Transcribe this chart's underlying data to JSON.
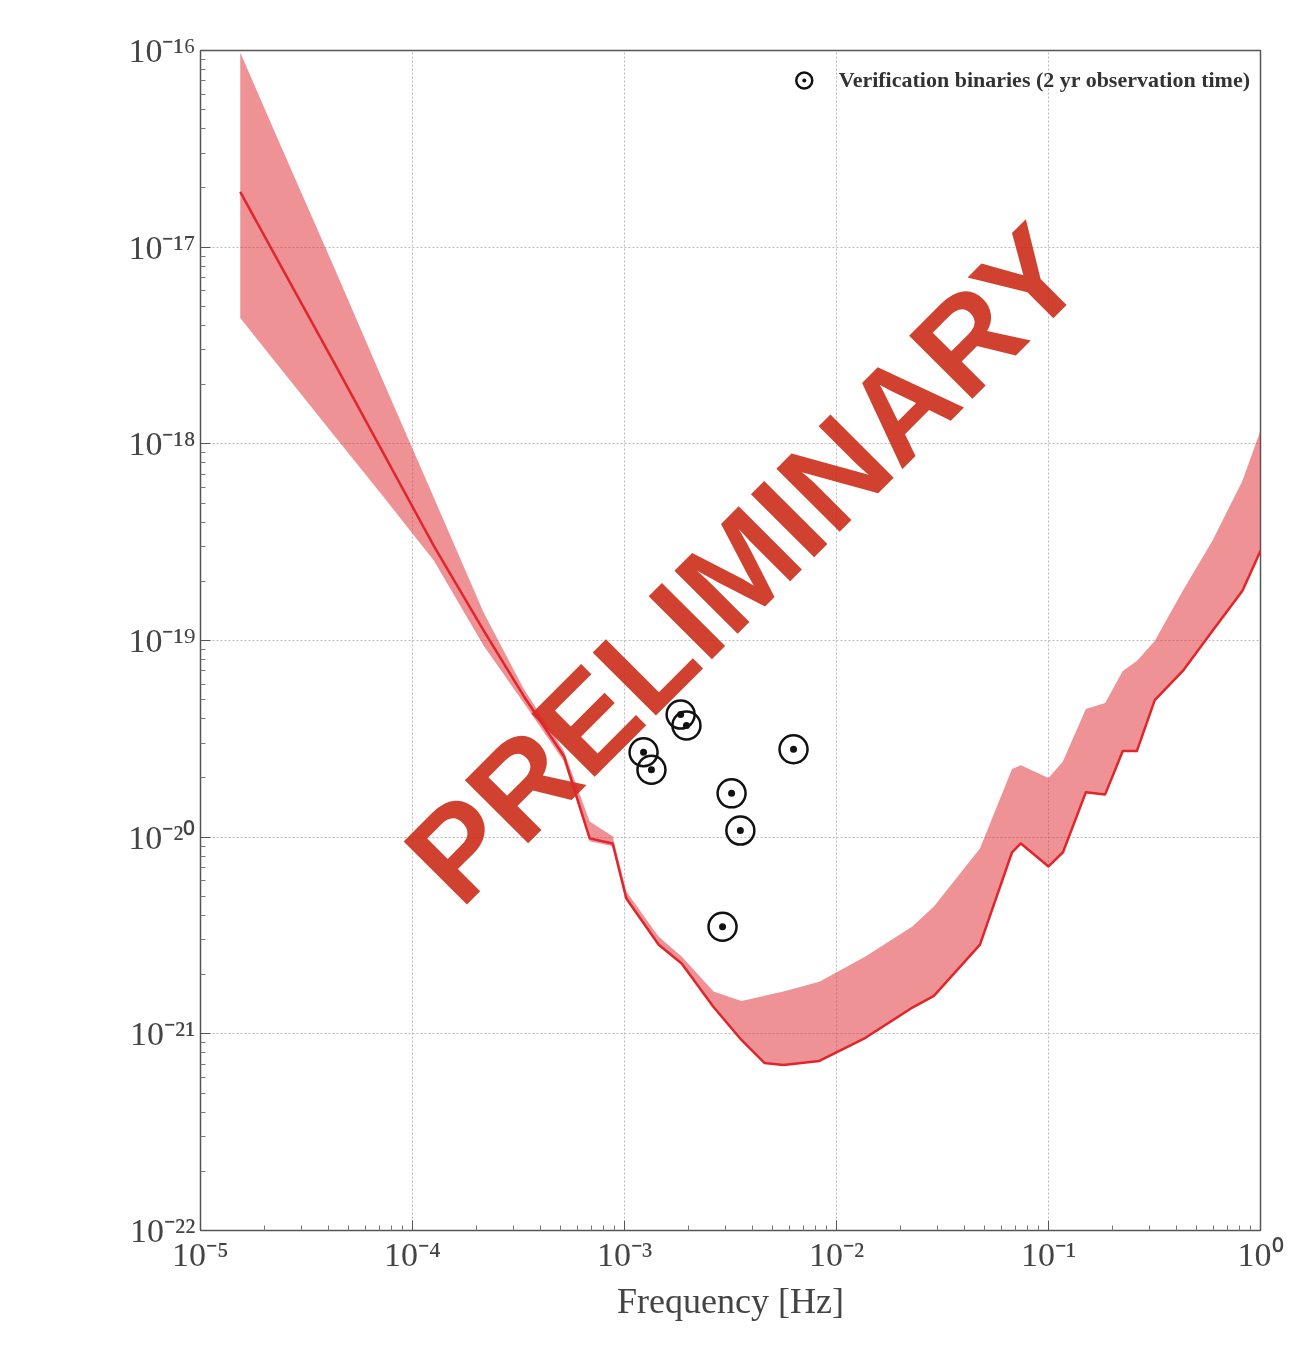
{
  "chart_data": {
    "type": "line",
    "xlabel": "Frequency [Hz]",
    "log": "xy",
    "grid": true,
    "legend": "top right",
    "xlim": [
      1e-05,
      1
    ],
    "ylim": [
      1e-22,
      1e-16
    ],
    "xticks": [
      {
        "value": 1e-05,
        "label": "10⁻⁵"
      },
      {
        "value": 0.0001,
        "label": "10⁻⁴"
      },
      {
        "value": 0.001,
        "label": "10⁻³"
      },
      {
        "value": 0.01,
        "label": "10⁻²"
      },
      {
        "value": 0.1,
        "label": "10⁻¹"
      },
      {
        "value": 1,
        "label": "10⁰"
      }
    ],
    "yticks": [
      {
        "value": 1e-22,
        "label": "10⁻²²"
      },
      {
        "value": 1e-21,
        "label": "10⁻²¹"
      },
      {
        "value": 1e-20,
        "label": "10⁻²⁰"
      },
      {
        "value": 1e-19,
        "label": "10⁻¹⁹"
      },
      {
        "value": 1e-18,
        "label": "10⁻¹⁸"
      },
      {
        "value": 1e-17,
        "label": "10⁻¹⁷"
      },
      {
        "value": 1e-16,
        "label": "10⁻¹⁶"
      }
    ],
    "series": [
      {
        "color": "#e0262b",
        "line_style": "solid",
        "marker": "none",
        "x": [
          1.54e-05,
          2.48e-05,
          4.28e-05,
          7.34e-05,
          0.000126,
          0.000217,
          0.000335,
          0.000518,
          0.000685,
          0.000879,
          0.00102,
          0.00145,
          0.00186,
          0.00263,
          0.00356,
          0.00457,
          0.00562,
          0.0083,
          0.0137,
          0.0228,
          0.0288,
          0.0475,
          0.0673,
          0.0741,
          0.1,
          0.117,
          0.15,
          0.185,
          0.224,
          0.261,
          0.317,
          0.43,
          0.594,
          0.822,
          1.0
        ],
        "values": [
          1.91e-17,
          7.48e-18,
          2.57e-18,
          8.83e-19,
          3.03e-19,
          1.12e-19,
          5.21e-20,
          2.58e-20,
          9.86e-21,
          9.29e-21,
          4.88e-21,
          2.84e-21,
          2.28e-21,
          1.37e-21,
          9.31e-22,
          7.11e-22,
          6.95e-22,
          7.28e-22,
          9.55e-22,
          1.36e-21,
          1.56e-21,
          2.84e-21,
          8.38e-21,
          9.29e-21,
          7.1e-21,
          8.38e-21,
          1.69e-20,
          1.65e-20,
          2.74e-20,
          2.74e-20,
          4.98e-20,
          7e-20,
          1.12e-19,
          1.79e-19,
          2.86e-19
        ],
        "lower": [
          4.36e-18,
          2.29e-18,
          1.1e-18,
          5.33e-19,
          2.55e-19,
          9.38e-20,
          4.81e-20,
          2.43e-20,
          9.52e-21,
          8.98e-21,
          4.88e-21,
          2.84e-21,
          2.28e-21,
          1.37e-21,
          9.31e-22,
          7.11e-22,
          6.95e-22,
          7.28e-22,
          9.55e-22,
          1.36e-21,
          1.56e-21,
          2.84e-21,
          8.38e-21,
          9.29e-21,
          7.1e-21,
          8.38e-21,
          1.69e-20,
          1.65e-20,
          2.74e-20,
          2.74e-20,
          4.98e-20,
          7e-20,
          1.12e-19,
          1.79e-19,
          2.86e-19
        ],
        "upper": [
          9.77e-17,
          2.99e-17,
          7.83e-18,
          2.03e-18,
          5.33e-19,
          1.38e-19,
          5.66e-20,
          2.74e-20,
          1.2e-20,
          1.01e-20,
          5.3e-21,
          3.12e-21,
          2.47e-21,
          1.64e-21,
          1.47e-21,
          1.56e-21,
          1.64e-21,
          1.84e-21,
          2.47e-21,
          3.51e-21,
          4.44e-21,
          8.77e-21,
          2.22e-20,
          2.32e-20,
          2e-20,
          2.43e-20,
          4.48e-20,
          4.81e-20,
          7e-20,
          7.87e-20,
          9.95e-20,
          1.79e-19,
          3.22e-19,
          6.5e-19,
          1.17e-18
        ]
      },
      {
        "type": "scatter",
        "name": "Verification binaries (2 yr observation time)",
        "color": "#111111",
        "marker": "circle",
        "x": [
          0.00184,
          0.00196,
          0.00123,
          0.00134,
          0.00627,
          0.0032,
          0.00352,
          0.0029
        ],
        "values": [
          4.2e-20,
          3.7e-20,
          2.7e-20,
          2.2e-20,
          2.8e-20,
          1.67e-20,
          1.08e-20,
          3.5e-21
        ]
      }
    ],
    "annotations": [
      "PRELIMINARY"
    ]
  }
}
